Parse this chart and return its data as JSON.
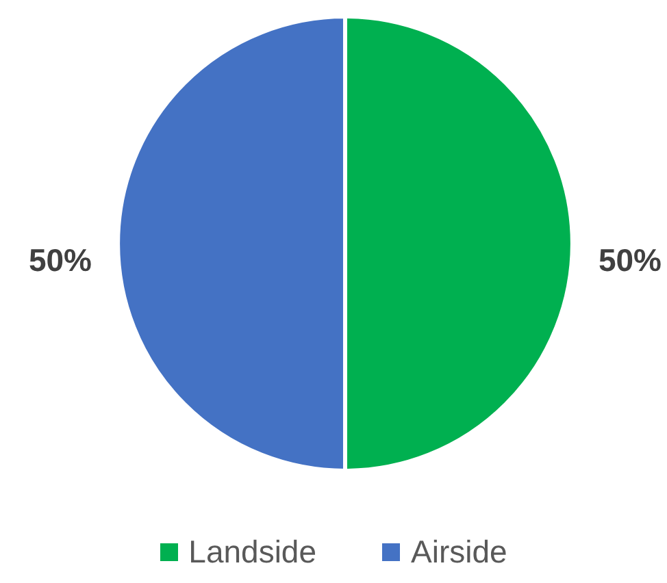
{
  "chart_data": {
    "type": "pie",
    "categories": [
      "Landside",
      "Airside"
    ],
    "values": [
      50,
      50
    ],
    "colors": [
      "#00b050",
      "#4472c4"
    ],
    "value_labels": [
      "50%",
      "50%"
    ],
    "legend": "bottom"
  }
}
